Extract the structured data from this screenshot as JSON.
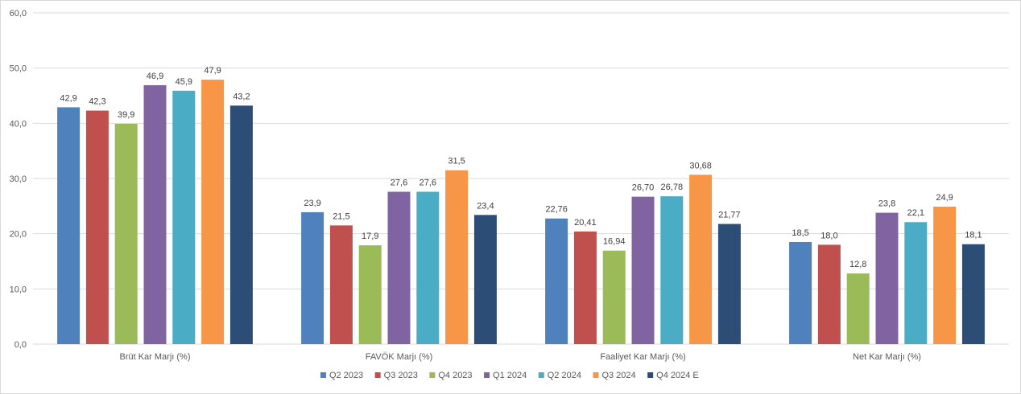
{
  "chart_data": {
    "type": "bar",
    "title": "",
    "xlabel": "",
    "ylabel": "",
    "ylim": [
      0,
      60
    ],
    "yticks": [
      "0,0",
      "10,0",
      "20,0",
      "30,0",
      "40,0",
      "50,0",
      "60,0"
    ],
    "grid": true,
    "legend_position": "bottom",
    "categories": [
      "Brüt Kar Marjı (%)",
      "FAVÖK Marjı (%)",
      "Faaliyet Kar Marjı (%)",
      "Net Kar Marjı (%)"
    ],
    "series": [
      {
        "name": "Q2 2023",
        "color": "#4f81bd",
        "values": [
          42.9,
          23.9,
          22.76,
          18.5
        ],
        "labels": [
          "42,9",
          "23,9",
          "22,76",
          "18,5"
        ]
      },
      {
        "name": "Q3 2023",
        "color": "#c0504d",
        "values": [
          42.3,
          21.5,
          20.41,
          18.0
        ],
        "labels": [
          "42,3",
          "21,5",
          "20,41",
          "18,0"
        ]
      },
      {
        "name": "Q4 2023",
        "color": "#9bbb59",
        "values": [
          39.9,
          17.9,
          16.94,
          12.8
        ],
        "labels": [
          "39,9",
          "17,9",
          "16,94",
          "12,8"
        ]
      },
      {
        "name": "Q1 2024",
        "color": "#8064a2",
        "values": [
          46.9,
          27.6,
          26.7,
          23.8
        ],
        "labels": [
          "46,9",
          "27,6",
          "26,70",
          "23,8"
        ]
      },
      {
        "name": "Q2 2024",
        "color": "#4bacc6",
        "values": [
          45.9,
          27.6,
          26.78,
          22.1
        ],
        "labels": [
          "45,9",
          "27,6",
          "26,78",
          "22,1"
        ]
      },
      {
        "name": "Q3 2024",
        "color": "#f79646",
        "values": [
          47.9,
          31.5,
          30.68,
          24.9
        ],
        "labels": [
          "47,9",
          "31,5",
          "30,68",
          "24,9"
        ]
      },
      {
        "name": "Q4 2024 E",
        "color": "#2c4d75",
        "values": [
          43.2,
          23.4,
          21.77,
          18.1
        ],
        "labels": [
          "43,2",
          "23,4",
          "21,77",
          "18,1"
        ]
      }
    ]
  }
}
